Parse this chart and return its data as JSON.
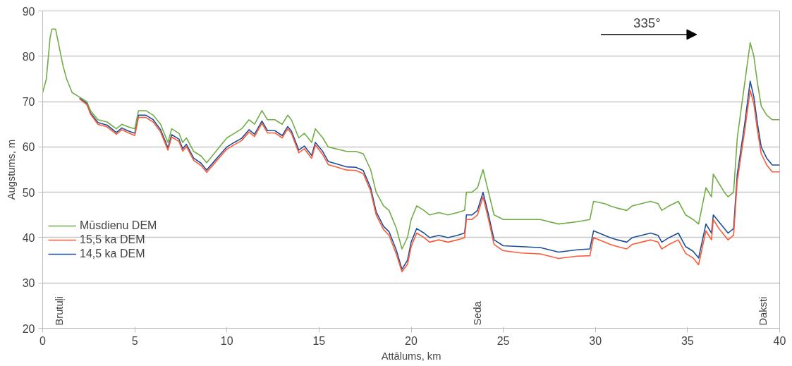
{
  "chart_data": {
    "type": "line",
    "xlabel": "Attālums, km",
    "ylabel": "Augstums, m",
    "x": [
      0,
      0.2,
      0.4,
      0.5,
      0.7,
      0.9,
      1.1,
      1.3,
      1.6,
      2.0,
      2.4,
      2.6,
      3.0,
      3.5,
      4.0,
      4.3,
      4.6,
      5.0,
      5.2,
      5.6,
      6.0,
      6.4,
      6.8,
      7.0,
      7.4,
      7.6,
      7.8,
      8.2,
      8.6,
      8.9,
      9.2,
      9.6,
      10.0,
      10.4,
      10.8,
      11.2,
      11.5,
      11.9,
      12.2,
      12.6,
      13.0,
      13.3,
      13.5,
      13.9,
      14.2,
      14.6,
      14.8,
      15.2,
      15.5,
      16.0,
      16.5,
      17.0,
      17.4,
      17.8,
      18.1,
      18.5,
      18.8,
      19.2,
      19.5,
      19.8,
      20.0,
      20.3,
      20.7,
      21.0,
      21.5,
      22.0,
      22.5,
      22.9,
      23.0,
      23.3,
      23.6,
      23.9,
      24.2,
      24.5,
      25,
      26,
      27,
      28,
      29,
      29.7,
      29.9,
      30.5,
      30.8,
      31.2,
      31.7,
      32.0,
      32.5,
      33.0,
      33.4,
      33.6,
      34.0,
      34.5,
      34.9,
      35.3,
      35.6,
      36.0,
      36.3,
      36.4,
      36.7,
      37.0,
      37.2,
      37.5,
      37.7,
      37.9,
      38.1,
      38.4,
      38.6,
      38.8,
      39.0,
      39.3,
      39.6,
      40
    ],
    "series": [
      {
        "name": "Mūsdienu DEM",
        "color": "#70ad47",
        "values": [
          72,
          75,
          84,
          86,
          86,
          82,
          78,
          75,
          72,
          71,
          70,
          68,
          66,
          65.5,
          64,
          65,
          64.5,
          64,
          68,
          68,
          67,
          65,
          61,
          64,
          63,
          61,
          62,
          59,
          58,
          56.5,
          58,
          60,
          62,
          63,
          64,
          66,
          65,
          68,
          66,
          66,
          65,
          67,
          66,
          62,
          63,
          61,
          64,
          62,
          60,
          59.5,
          59,
          59,
          58.5,
          55,
          50,
          47,
          46,
          42,
          37.5,
          40,
          44,
          47,
          46,
          45,
          45.5,
          45,
          45.5,
          46,
          50,
          50,
          51,
          55,
          50,
          45,
          44,
          44,
          44,
          43,
          43.5,
          44,
          48,
          47.5,
          47,
          46.5,
          46,
          47,
          47.5,
          48,
          47.5,
          46,
          47,
          48,
          45,
          44,
          43,
          51,
          49,
          54,
          52,
          50,
          49,
          50,
          62,
          68,
          74,
          83,
          80,
          74,
          69,
          67,
          66,
          66
        ]
      },
      {
        "name": "15,5 ka DEM",
        "color": "#ff5a36",
        "values": [
          null,
          null,
          null,
          null,
          null,
          null,
          null,
          null,
          null,
          70.6,
          69.3,
          67.2,
          65,
          64.4,
          62.8,
          63.8,
          63.2,
          62.5,
          66.5,
          66.5,
          65.5,
          63.3,
          59.3,
          62.2,
          61.2,
          59.1,
          60.1,
          57,
          55.9,
          54.4,
          55.8,
          57.7,
          59.5,
          60.5,
          61.4,
          63.3,
          62.3,
          65.2,
          63.1,
          63.1,
          62,
          64,
          63,
          58.7,
          59.6,
          57.5,
          60.4,
          58.3,
          56.1,
          55.5,
          54.9,
          54.8,
          54.1,
          50.3,
          45,
          41.8,
          40.5,
          36.3,
          32.5,
          34.1,
          38,
          41,
          40,
          39,
          39.5,
          39,
          39.5,
          40,
          44,
          44,
          45,
          49,
          44,
          38.5,
          37.1,
          36.6,
          36.4,
          35.4,
          35.9,
          36,
          40,
          39,
          38.5,
          38,
          37.5,
          38.5,
          39,
          39.5,
          39,
          37.5,
          38.5,
          39.5,
          36.5,
          35.5,
          34,
          41.5,
          39.5,
          44,
          42,
          40.5,
          39.5,
          40.5,
          52.5,
          58,
          63.5,
          72.5,
          69.5,
          63.5,
          58.5,
          56,
          54.5,
          54.5
        ]
      },
      {
        "name": "14,5 ka DEM",
        "color": "#1f4e99",
        "values": [
          null,
          null,
          null,
          null,
          null,
          null,
          null,
          null,
          null,
          70.8,
          69.6,
          67.5,
          65.4,
          64.8,
          63.2,
          64.2,
          63.6,
          63,
          67,
          67,
          66,
          63.8,
          59.8,
          62.7,
          61.7,
          59.6,
          60.6,
          57.5,
          56.4,
          54.9,
          56.3,
          58.2,
          60,
          61,
          61.9,
          63.8,
          62.8,
          65.7,
          63.6,
          63.6,
          62.5,
          64.5,
          63.5,
          59.3,
          60.2,
          58.1,
          61,
          59,
          56.8,
          56.2,
          55.6,
          55.5,
          54.8,
          51,
          45.7,
          42.5,
          41.3,
          37.2,
          33,
          35,
          39,
          42,
          41,
          40,
          40.5,
          40,
          40.5,
          41,
          45,
          45,
          46,
          50,
          45,
          39.5,
          38.2,
          38,
          37.8,
          36.8,
          37.3,
          37.5,
          41.5,
          40.5,
          40,
          39.5,
          39,
          40,
          40.5,
          41,
          40.5,
          39,
          40,
          41,
          38,
          37,
          35.5,
          43,
          41,
          45,
          43.5,
          42,
          41,
          42,
          54,
          59.5,
          65,
          74.5,
          71,
          65,
          60,
          57.5,
          56,
          56
        ]
      }
    ],
    "xlim": [
      0,
      40
    ],
    "xticks": [
      0,
      5,
      10,
      15,
      20,
      25,
      30,
      35,
      40
    ],
    "ylim": [
      20,
      90
    ],
    "yticks": [
      20,
      30,
      40,
      50,
      60,
      70,
      80,
      90
    ],
    "grid": "y",
    "legend": "bottom left",
    "marker": "none",
    "line_style": "solid",
    "annotations": [
      "Brutuļi",
      "Seda",
      "Daksti",
      "335°"
    ]
  }
}
